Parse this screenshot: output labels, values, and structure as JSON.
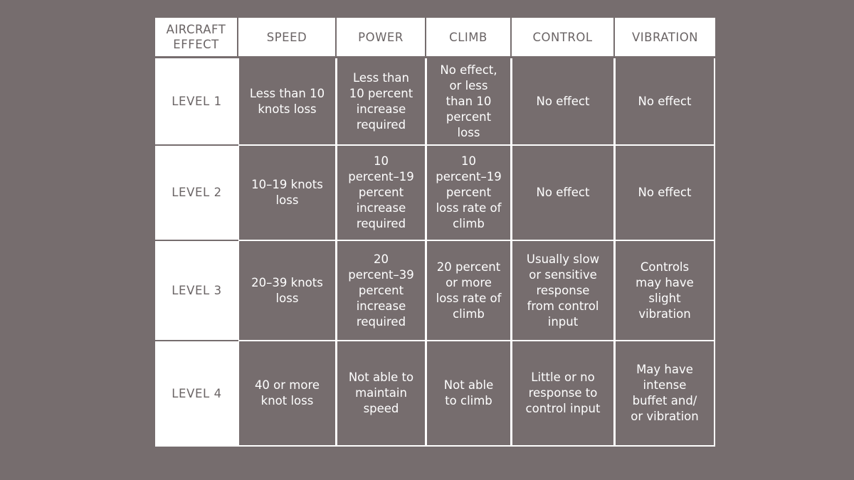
{
  "colors": {
    "background": "#766d6e",
    "header_bg": "#ffffff",
    "header_text": "#6a6465",
    "cell_bg": "#766d6e",
    "cell_text": "#ffffff"
  },
  "table": {
    "corner_header": "AIRCRAFT\nEFFECT",
    "columns": [
      "SPEED",
      "POWER",
      "CLIMB",
      "CONTROL",
      "VIBRATION"
    ],
    "rows": [
      {
        "level": "LEVEL 1",
        "cells": [
          "Less than 10\nknots loss",
          "Less than\n10 percent\nincrease\nrequired",
          "No effect,\nor less\nthan 10\npercent\nloss",
          "No effect",
          "No effect"
        ]
      },
      {
        "level": "LEVEL 2",
        "cells": [
          "10–19 knots\nloss",
          "10\npercent–19\npercent\nincrease\nrequired",
          "10\npercent–19\npercent\nloss rate of\nclimb",
          "No effect",
          "No effect"
        ]
      },
      {
        "level": "LEVEL 3",
        "cells": [
          "20–39 knots\nloss",
          "20\npercent–39\npercent\nincrease\nrequired",
          "20 percent\nor more\nloss rate of\nclimb",
          "Usually slow\nor sensitive\nresponse\nfrom control\ninput",
          "Controls\nmay have\nslight\nvibration"
        ]
      },
      {
        "level": "LEVEL 4",
        "cells": [
          "40 or more\nknot loss",
          "Not able to\nmaintain\nspeed",
          "Not able\nto climb",
          "Little or no\nresponse to\ncontrol input",
          "May have\nintense\nbuffet and/\nor vibration"
        ]
      }
    ]
  }
}
